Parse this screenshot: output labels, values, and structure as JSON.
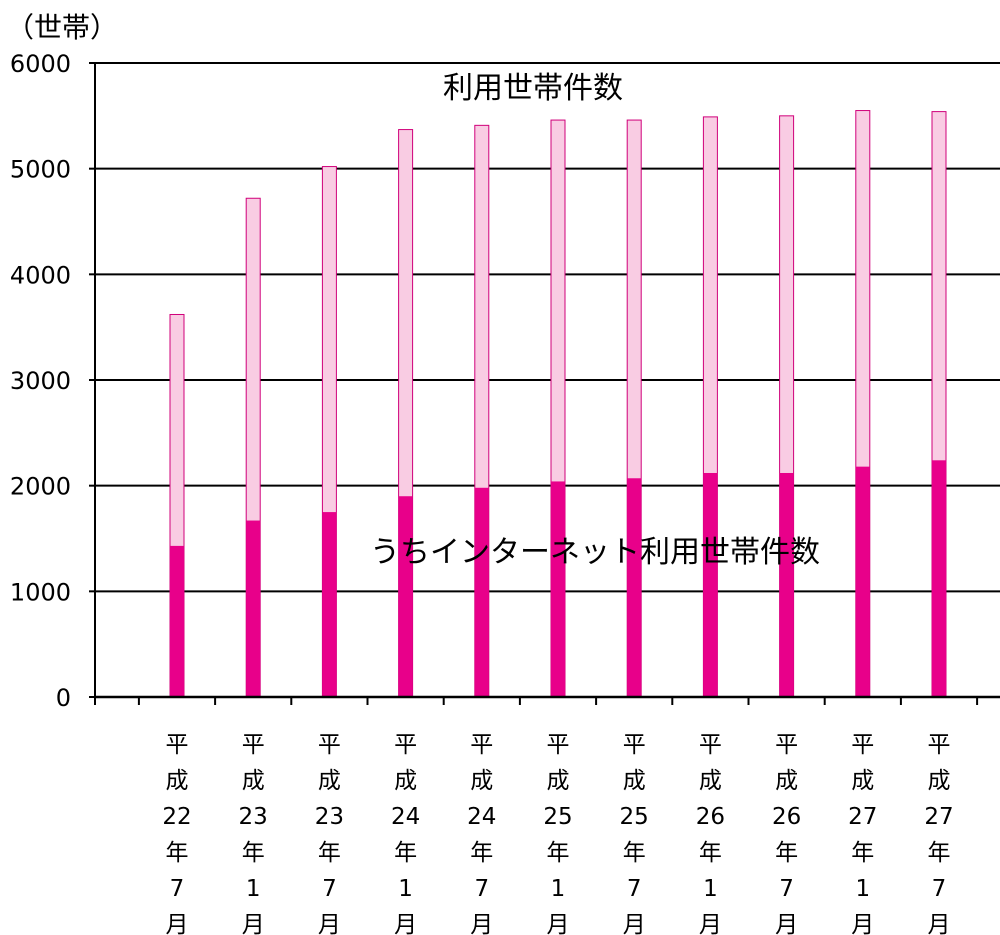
{
  "chart_data": {
    "type": "bar",
    "y_unit_label": "（世帯）",
    "categories": [
      [
        "平",
        "成",
        "22",
        "年",
        "7",
        "月"
      ],
      [
        "平",
        "成",
        "23",
        "年",
        "1",
        "月"
      ],
      [
        "平",
        "成",
        "23",
        "年",
        "7",
        "月"
      ],
      [
        "平",
        "成",
        "24",
        "年",
        "1",
        "月"
      ],
      [
        "平",
        "成",
        "24",
        "年",
        "7",
        "月"
      ],
      [
        "平",
        "成",
        "25",
        "年",
        "1",
        "月"
      ],
      [
        "平",
        "成",
        "25",
        "年",
        "7",
        "月"
      ],
      [
        "平",
        "成",
        "26",
        "年",
        "1",
        "月"
      ],
      [
        "平",
        "成",
        "26",
        "年",
        "7",
        "月"
      ],
      [
        "平",
        "成",
        "27",
        "年",
        "1",
        "月"
      ],
      [
        "平",
        "成",
        "27",
        "年",
        "7",
        "月"
      ]
    ],
    "series": [
      {
        "name": "利用世帯件数",
        "color": "#f9cce3",
        "values": [
          3620,
          4720,
          5020,
          5370,
          5410,
          5460,
          5460,
          5490,
          5500,
          5550,
          5540
        ]
      },
      {
        "name": "うちインターネット利用世帯件数",
        "color": "#e8008a",
        "values": [
          1430,
          1670,
          1750,
          1900,
          1980,
          2040,
          2070,
          2120,
          2120,
          2180,
          2240
        ]
      }
    ],
    "ylim": [
      0,
      6000
    ],
    "yticks": [
      0,
      1000,
      2000,
      3000,
      4000,
      5000,
      6000
    ],
    "grid": true,
    "legend": "in-plot labels"
  }
}
